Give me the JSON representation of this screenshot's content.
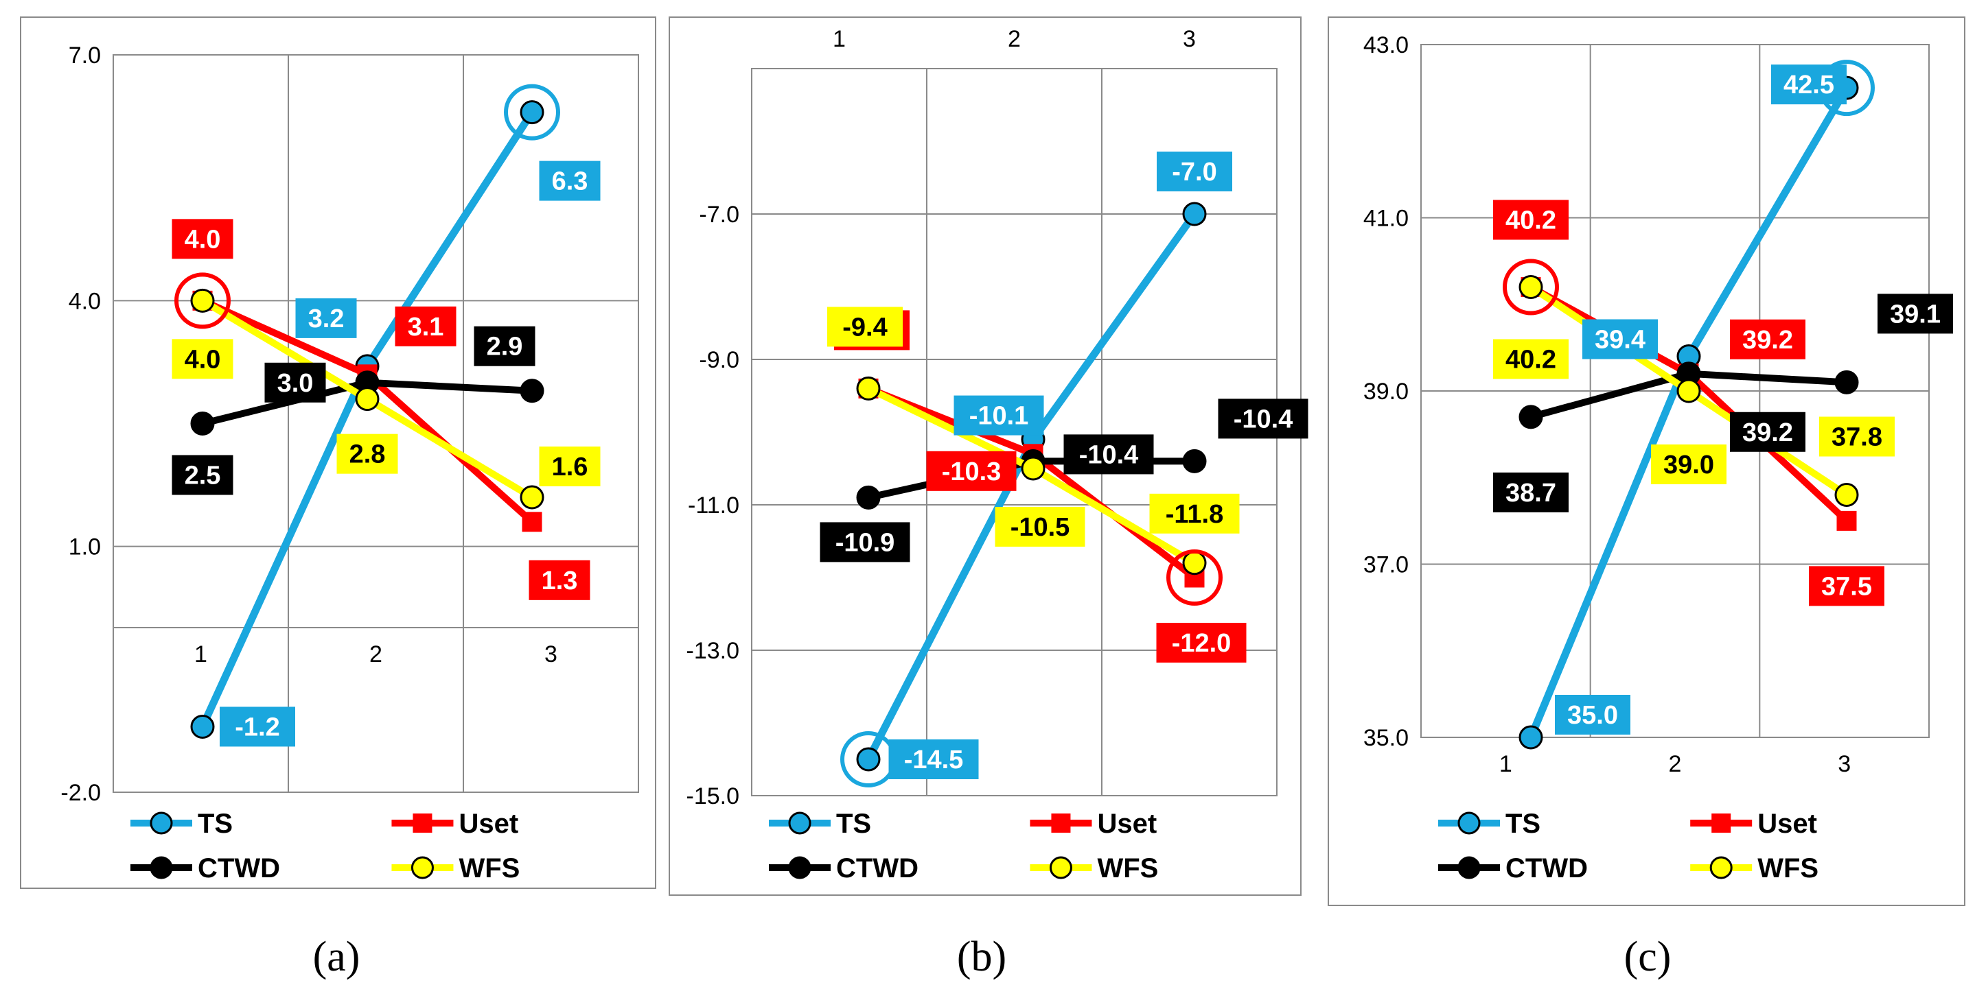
{
  "series_style": {
    "TS": {
      "color": "#1aa7de",
      "marker": "circle",
      "text": "#ffffff"
    },
    "Uset": {
      "color": "#ff0000",
      "marker": "square",
      "text": "#ffffff"
    },
    "CTWD": {
      "color": "#000000",
      "marker": "circle",
      "text": "#ffffff"
    },
    "WFS": {
      "color": "#ffff00",
      "marker": "circle",
      "text": "#000000"
    }
  },
  "chart_data": [
    {
      "type": "line",
      "caption": "(a)",
      "x": [
        1,
        2,
        3
      ],
      "x_tick_labels": [
        "1",
        "2",
        "3"
      ],
      "y_ticks": [
        "7.0",
        "4.0",
        "1.0",
        "-2.0"
      ],
      "ylim": [
        -2,
        7
      ],
      "grid": true,
      "legend": "bottom",
      "series": [
        {
          "name": "TS",
          "values": [
            -1.2,
            3.2,
            6.3
          ],
          "labels": [
            "-1.2",
            "3.2",
            "6.3"
          ]
        },
        {
          "name": "Uset",
          "values": [
            4.0,
            3.1,
            1.3
          ],
          "labels": [
            "4.0",
            "3.1",
            "1.3"
          ]
        },
        {
          "name": "CTWD",
          "values": [
            2.5,
            3.0,
            2.9
          ],
          "labels": [
            "2.5",
            "3.0",
            "2.9"
          ]
        },
        {
          "name": "WFS",
          "values": [
            4.0,
            2.8,
            1.6
          ],
          "labels": [
            "4.0",
            "2.8",
            "1.6"
          ]
        }
      ],
      "highlighted": [
        {
          "series": "TS",
          "point": 3
        },
        {
          "series": "Uset",
          "point": 1
        }
      ]
    },
    {
      "type": "line",
      "caption": "(b)",
      "x": [
        1,
        2,
        3
      ],
      "x_tick_labels": [
        "1",
        "2",
        "3"
      ],
      "y_ticks": [
        "-7.0",
        "-9.0",
        "-11.0",
        "-13.0",
        "-15.0"
      ],
      "ylim": [
        -15,
        -5
      ],
      "grid": true,
      "legend": "bottom",
      "series": [
        {
          "name": "TS",
          "values": [
            -14.5,
            -10.1,
            -7.0
          ],
          "labels": [
            "-14.5",
            "-10.1",
            "-7.0"
          ]
        },
        {
          "name": "Uset",
          "values": [
            -9.4,
            -10.3,
            -12.0
          ],
          "labels": [
            "-9.4",
            "-10.3",
            "-12.0"
          ]
        },
        {
          "name": "CTWD",
          "values": [
            -10.9,
            -10.4,
            -10.4
          ],
          "labels": [
            "-10.9",
            "-10.4",
            "-10.4"
          ]
        },
        {
          "name": "WFS",
          "values": [
            -9.4,
            -10.5,
            -11.8
          ],
          "labels": [
            "-9.4",
            "-10.5",
            "-11.8"
          ]
        }
      ],
      "highlighted": [
        {
          "series": "TS",
          "point": 1
        },
        {
          "series": "Uset",
          "point": 3
        }
      ]
    },
    {
      "type": "line",
      "caption": "(c)",
      "x": [
        1,
        2,
        3
      ],
      "x_tick_labels": [
        "1",
        "2",
        "3"
      ],
      "y_ticks": [
        "43.0",
        "41.0",
        "39.0",
        "37.0",
        "35.0"
      ],
      "ylim": [
        35,
        43
      ],
      "grid": true,
      "legend": "bottom",
      "series": [
        {
          "name": "TS",
          "values": [
            35.0,
            39.4,
            42.5
          ],
          "labels": [
            "35.0",
            "39.4",
            "42.5"
          ]
        },
        {
          "name": "Uset",
          "values": [
            40.2,
            39.2,
            37.5
          ],
          "labels": [
            "40.2",
            "39.2",
            "37.5"
          ]
        },
        {
          "name": "CTWD",
          "values": [
            38.7,
            39.2,
            39.1
          ],
          "labels": [
            "38.7",
            "39.2",
            "39.1"
          ]
        },
        {
          "name": "WFS",
          "values": [
            40.2,
            39.0,
            37.8
          ],
          "labels": [
            "40.2",
            "39.0",
            "37.8"
          ]
        }
      ],
      "highlighted": [
        {
          "series": "TS",
          "point": 3
        },
        {
          "series": "Uset",
          "point": 1
        }
      ]
    }
  ]
}
